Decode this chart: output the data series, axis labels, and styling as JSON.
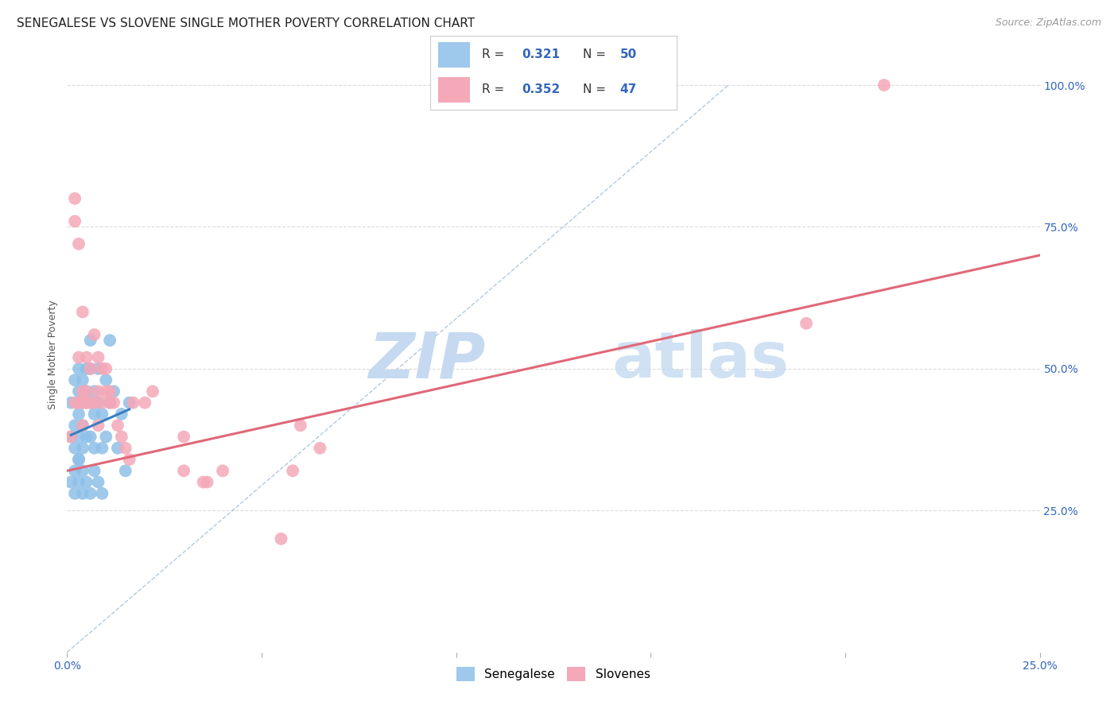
{
  "title": "SENEGALESE VS SLOVENE SINGLE MOTHER POVERTY CORRELATION CHART",
  "source": "Source: ZipAtlas.com",
  "ylabel": "Single Mother Poverty",
  "xlim": [
    0.0,
    0.25
  ],
  "ylim": [
    0.0,
    1.05
  ],
  "xtick_vals": [
    0.0,
    0.25
  ],
  "xtick_labels": [
    "0.0%",
    "25.0%"
  ],
  "ytick_vals": [
    0.25,
    0.5,
    0.75,
    1.0
  ],
  "ytick_labels": [
    "25.0%",
    "50.0%",
    "75.0%",
    "100.0%"
  ],
  "senegalese_color": "#8ec0e8",
  "slovene_color": "#f4a8b8",
  "R_senegalese": 0.321,
  "N_senegalese": 50,
  "R_slovene": 0.352,
  "N_slovene": 47,
  "background_color": "#ffffff",
  "grid_color": "#d8d8d8",
  "title_fontsize": 11,
  "axis_label_fontsize": 9,
  "tick_fontsize": 10,
  "watermark_color": "#c5daf0",
  "trendline_blue_color": "#3a7fc0",
  "trendline_pink_color": "#e06878",
  "diag_line_color": "#a0bcd8",
  "legend_blue_color": "#9ec8ec",
  "legend_pink_color": "#f4a8b8",
  "sen_x": [
    0.001,
    0.001,
    0.002,
    0.002,
    0.002,
    0.002,
    0.003,
    0.003,
    0.003,
    0.003,
    0.003,
    0.004,
    0.004,
    0.004,
    0.004,
    0.004,
    0.005,
    0.005,
    0.005,
    0.005,
    0.006,
    0.006,
    0.006,
    0.006,
    0.007,
    0.007,
    0.007,
    0.008,
    0.008,
    0.009,
    0.009,
    0.01,
    0.01,
    0.011,
    0.011,
    0.012,
    0.013,
    0.014,
    0.015,
    0.016,
    0.001,
    0.002,
    0.003,
    0.003,
    0.004,
    0.005,
    0.006,
    0.007,
    0.008,
    0.009
  ],
  "sen_y": [
    0.38,
    0.44,
    0.48,
    0.36,
    0.32,
    0.4,
    0.5,
    0.46,
    0.42,
    0.34,
    0.38,
    0.44,
    0.36,
    0.4,
    0.32,
    0.48,
    0.5,
    0.46,
    0.38,
    0.44,
    0.55,
    0.44,
    0.5,
    0.38,
    0.46,
    0.42,
    0.36,
    0.44,
    0.5,
    0.42,
    0.36,
    0.48,
    0.38,
    0.44,
    0.55,
    0.46,
    0.36,
    0.42,
    0.32,
    0.44,
    0.3,
    0.28,
    0.34,
    0.3,
    0.28,
    0.3,
    0.28,
    0.32,
    0.3,
    0.28
  ],
  "slo_x": [
    0.001,
    0.002,
    0.002,
    0.003,
    0.003,
    0.003,
    0.004,
    0.004,
    0.004,
    0.005,
    0.005,
    0.005,
    0.006,
    0.006,
    0.007,
    0.007,
    0.008,
    0.008,
    0.008,
    0.009,
    0.009,
    0.01,
    0.01,
    0.011,
    0.011,
    0.012,
    0.013,
    0.014,
    0.015,
    0.016,
    0.017,
    0.02,
    0.022,
    0.03,
    0.03,
    0.035,
    0.036,
    0.04,
    0.055,
    0.058,
    0.06,
    0.065,
    0.002,
    0.003,
    0.004,
    0.19,
    0.21
  ],
  "slo_y": [
    0.38,
    0.8,
    0.44,
    0.52,
    0.44,
    0.44,
    0.46,
    0.4,
    0.44,
    0.52,
    0.46,
    0.44,
    0.5,
    0.44,
    0.56,
    0.44,
    0.52,
    0.46,
    0.4,
    0.5,
    0.44,
    0.46,
    0.5,
    0.44,
    0.46,
    0.44,
    0.4,
    0.38,
    0.36,
    0.34,
    0.44,
    0.44,
    0.46,
    0.38,
    0.32,
    0.3,
    0.3,
    0.32,
    0.2,
    0.32,
    0.4,
    0.36,
    0.76,
    0.72,
    0.6,
    0.58,
    1.0
  ]
}
